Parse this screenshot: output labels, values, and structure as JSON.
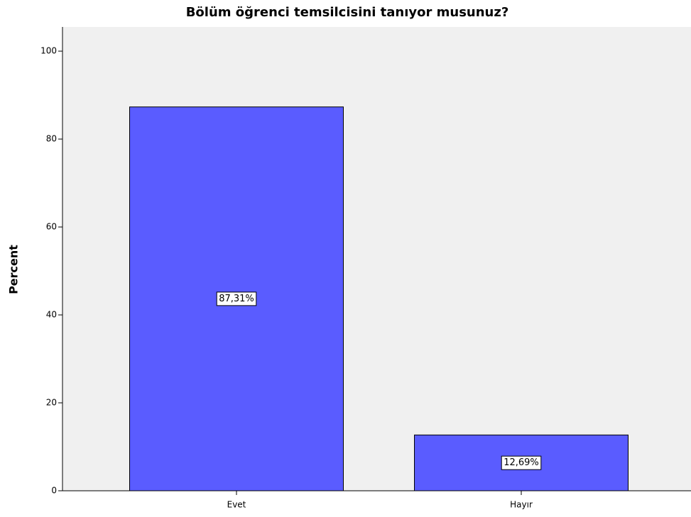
{
  "chart_data": {
    "type": "bar",
    "title": "Bölüm öğrenci temsilcisini tanıyor musunuz?",
    "y_label": "Percent",
    "categories": [
      "Evet",
      "Hayır"
    ],
    "values": [
      87.31,
      12.69
    ],
    "value_labels": [
      "87,31%",
      "12,69%"
    ],
    "color": "#5a5cff",
    "ylim": [
      0,
      105.5
    ],
    "yticks": [
      0,
      20,
      40,
      60,
      80,
      100
    ],
    "grid": false
  }
}
